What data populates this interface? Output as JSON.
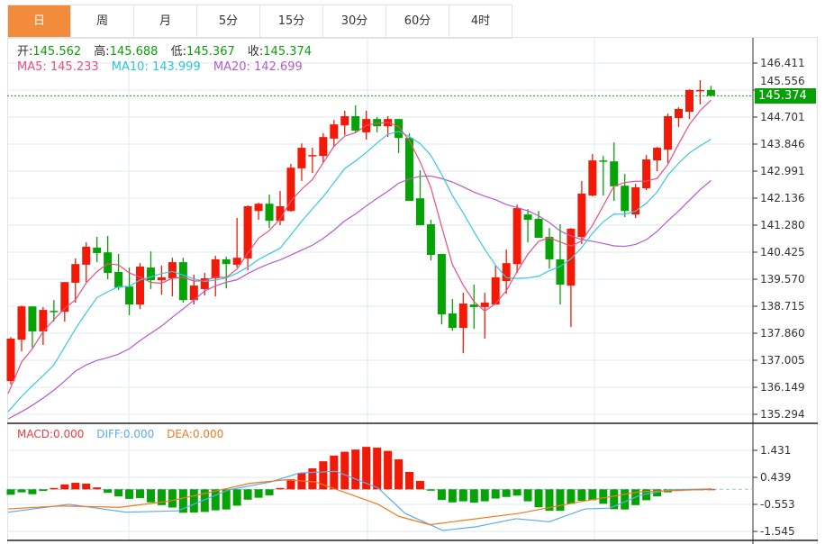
{
  "tabs": [
    {
      "label": "日",
      "active": true
    },
    {
      "label": "周"
    },
    {
      "label": "月"
    },
    {
      "label": "5分"
    },
    {
      "label": "15分"
    },
    {
      "label": "30分"
    },
    {
      "label": "60分"
    },
    {
      "label": "4时"
    }
  ],
  "ohlc_info": {
    "open_label": "开:",
    "open": "145.562",
    "high_label": "高:",
    "high": "145.688",
    "low_label": "低:",
    "low": "145.367",
    "close_label": "收:",
    "close": "145.374"
  },
  "ma_info": {
    "ma5": "MA5: 145.233",
    "ma10": "MA10: 143.999",
    "ma20": "MA20: 142.699"
  },
  "macd_info": {
    "macd": "MACD:0.000",
    "diff": "DIFF:0.000",
    "dea": "DEA:0.000"
  },
  "last_price_tag": "145.374",
  "colors": {
    "up": "#f21a06",
    "down": "#06a306",
    "ma5": "#ee4d7e",
    "ma10": "#38c8e0",
    "ma20": "#b55ccc",
    "diff": "#5aabf0",
    "dea": "#f07a1e",
    "grid": "#dfe8f0",
    "active_tab": "#f28c3c"
  },
  "chart_data": {
    "type": "candlestick",
    "price_axis": {
      "ticks": [
        "146.411",
        "145.556",
        "144.701",
        "143.846",
        "142.991",
        "142.136",
        "141.280",
        "140.425",
        "139.570",
        "138.715",
        "137.860",
        "137.005",
        "136.149",
        "135.294"
      ],
      "range": [
        135.294,
        146.411
      ]
    },
    "macd_axis": {
      "ticks": [
        "1.431",
        "0.439",
        "-0.553",
        "-1.545"
      ],
      "range": [
        -1.545,
        1.431
      ]
    },
    "candles": [
      [
        136.35,
        137.74,
        136.24,
        137.69
      ],
      [
        137.66,
        138.74,
        137.29,
        138.71
      ],
      [
        138.71,
        138.71,
        137.4,
        137.92
      ],
      [
        137.92,
        138.69,
        137.49,
        138.6
      ],
      [
        138.57,
        138.91,
        138.23,
        138.54
      ],
      [
        138.54,
        139.48,
        138.23,
        139.48
      ],
      [
        139.46,
        140.23,
        138.83,
        140.05
      ],
      [
        140.03,
        140.74,
        139.48,
        140.6
      ],
      [
        140.57,
        140.91,
        140.11,
        140.4
      ],
      [
        140.42,
        140.94,
        139.57,
        139.77
      ],
      [
        139.8,
        140.37,
        139.23,
        139.31
      ],
      [
        139.34,
        139.94,
        138.43,
        138.77
      ],
      [
        138.77,
        140.08,
        138.63,
        139.97
      ],
      [
        139.94,
        140.45,
        139.26,
        139.54
      ],
      [
        139.54,
        140.0,
        139.08,
        139.63
      ],
      [
        139.6,
        140.25,
        139.03,
        140.11
      ],
      [
        140.11,
        140.25,
        138.83,
        138.91
      ],
      [
        138.91,
        139.71,
        138.77,
        139.37
      ],
      [
        139.26,
        139.77,
        139.06,
        139.6
      ],
      [
        139.6,
        140.31,
        139.03,
        140.2
      ],
      [
        140.2,
        140.28,
        139.28,
        140.05
      ],
      [
        140.03,
        141.51,
        139.94,
        140.25
      ],
      [
        140.23,
        141.91,
        139.85,
        141.88
      ],
      [
        141.73,
        141.99,
        141.45,
        141.96
      ],
      [
        141.96,
        142.25,
        141.19,
        141.42
      ],
      [
        141.42,
        142.36,
        141.28,
        141.88
      ],
      [
        141.73,
        143.22,
        141.71,
        143.1
      ],
      [
        143.08,
        143.87,
        142.68,
        143.73
      ],
      [
        143.47,
        143.73,
        142.93,
        143.5
      ],
      [
        143.47,
        144.19,
        143.27,
        144.07
      ],
      [
        144.02,
        144.61,
        143.76,
        144.47
      ],
      [
        144.44,
        144.9,
        144.13,
        144.73
      ],
      [
        144.73,
        145.07,
        144.22,
        144.27
      ],
      [
        144.22,
        144.9,
        143.99,
        144.64
      ],
      [
        144.64,
        144.7,
        144.22,
        144.41
      ],
      [
        144.41,
        144.73,
        144.07,
        144.64
      ],
      [
        144.64,
        144.64,
        143.56,
        144.04
      ],
      [
        144.04,
        144.19,
        142.05,
        142.05
      ],
      [
        142.13,
        143.02,
        141.28,
        141.28
      ],
      [
        141.31,
        141.45,
        140.17,
        140.34
      ],
      [
        140.37,
        140.37,
        138.14,
        138.46
      ],
      [
        138.49,
        138.94,
        137.94,
        138.03
      ],
      [
        138.03,
        139.14,
        137.23,
        138.8
      ],
      [
        138.77,
        139.4,
        138.0,
        138.69
      ],
      [
        138.69,
        139.14,
        137.69,
        138.83
      ],
      [
        138.77,
        140.0,
        138.77,
        139.63
      ],
      [
        139.51,
        140.51,
        139.11,
        140.08
      ],
      [
        140.05,
        141.93,
        139.77,
        141.82
      ],
      [
        141.62,
        141.79,
        140.74,
        141.45
      ],
      [
        141.48,
        141.73,
        140.88,
        140.88
      ],
      [
        140.91,
        141.19,
        139.91,
        140.2
      ],
      [
        140.2,
        141.31,
        138.77,
        139.4
      ],
      [
        139.37,
        141.19,
        138.06,
        141.17
      ],
      [
        140.91,
        142.68,
        140.68,
        142.28
      ],
      [
        142.22,
        143.53,
        142.19,
        143.33
      ],
      [
        143.33,
        143.47,
        142.22,
        143.3
      ],
      [
        143.3,
        143.9,
        142.05,
        142.51
      ],
      [
        142.53,
        142.9,
        141.54,
        141.73
      ],
      [
        141.62,
        142.59,
        141.51,
        142.48
      ],
      [
        142.45,
        143.5,
        142.39,
        143.36
      ],
      [
        143.33,
        143.76,
        142.99,
        143.73
      ],
      [
        143.67,
        144.81,
        143.25,
        144.73
      ],
      [
        144.67,
        145.01,
        144.39,
        144.96
      ],
      [
        144.87,
        145.58,
        144.64,
        145.56
      ],
      [
        145.53,
        145.87,
        145.1,
        145.56
      ],
      [
        145.562,
        145.688,
        145.367,
        145.374
      ]
    ],
    "ma_seed": {
      "ma5": [
        135.95,
        136.95,
        137.37,
        137.91
      ],
      "ma10": [
        135.38,
        135.86,
        136.2,
        136.52,
        136.86,
        137.43,
        138.0,
        138.51,
        138.99
      ],
      "ma20": [
        135.15,
        135.38,
        135.58,
        135.81,
        136.06,
        136.35,
        136.66,
        136.86,
        137.0,
        137.09,
        137.2,
        137.37,
        137.63,
        137.86,
        138.09,
        138.37,
        138.63,
        138.91,
        139.2
      ]
    },
    "macd_hist": [
      -0.2,
      -0.11,
      -0.18,
      -0.06,
      0.05,
      0.18,
      0.24,
      0.21,
      0.07,
      -0.13,
      -0.26,
      -0.35,
      -0.32,
      -0.48,
      -0.58,
      -0.67,
      -0.86,
      -0.85,
      -0.83,
      -0.77,
      -0.74,
      -0.6,
      -0.38,
      -0.31,
      -0.22,
      0.05,
      0.37,
      0.6,
      0.77,
      1.03,
      1.24,
      1.38,
      1.46,
      1.56,
      1.53,
      1.41,
      1.1,
      0.64,
      0.31,
      -0.05,
      -0.39,
      -0.48,
      -0.44,
      -0.49,
      -0.44,
      -0.34,
      -0.28,
      -0.23,
      -0.44,
      -0.66,
      -0.79,
      -0.79,
      -0.53,
      -0.42,
      -0.4,
      -0.53,
      -0.73,
      -0.74,
      -0.58,
      -0.4,
      -0.26,
      -0.11,
      -0.06,
      -0.02,
      -0.01,
      0.0
    ],
    "diff_line": [
      [
        -0.3,
        -0.84
      ],
      [
        5.4,
        -0.55
      ],
      [
        10.7,
        -0.84
      ],
      [
        15.5,
        -0.79
      ],
      [
        20.2,
        -0.02
      ],
      [
        24.1,
        0.27
      ],
      [
        26.8,
        0.6
      ],
      [
        30.2,
        0.66
      ],
      [
        34.1,
        0.05
      ],
      [
        36.6,
        -0.88
      ],
      [
        40.1,
        -1.51
      ],
      [
        43.1,
        -1.38
      ],
      [
        46.9,
        -1.08
      ],
      [
        50.0,
        -1.19
      ],
      [
        53.3,
        -0.72
      ],
      [
        55.6,
        -0.69
      ],
      [
        58.4,
        -0.22
      ],
      [
        61.1,
        -0.02
      ],
      [
        65.1,
        0.02
      ]
    ],
    "dea_line": [
      [
        -0.3,
        -0.72
      ],
      [
        4.6,
        -0.61
      ],
      [
        10.1,
        -0.66
      ],
      [
        14.6,
        -0.44
      ],
      [
        18.5,
        -0.11
      ],
      [
        22.2,
        0.22
      ],
      [
        25.5,
        0.35
      ],
      [
        28.3,
        0.27
      ],
      [
        34.1,
        -0.55
      ],
      [
        36.0,
        -0.99
      ],
      [
        38.9,
        -1.3
      ],
      [
        41.6,
        -1.16
      ],
      [
        47.2,
        -0.88
      ],
      [
        52.8,
        -0.46
      ],
      [
        58.4,
        -0.09
      ],
      [
        63.4,
        -0.02
      ],
      [
        65.1,
        0.0
      ]
    ]
  }
}
